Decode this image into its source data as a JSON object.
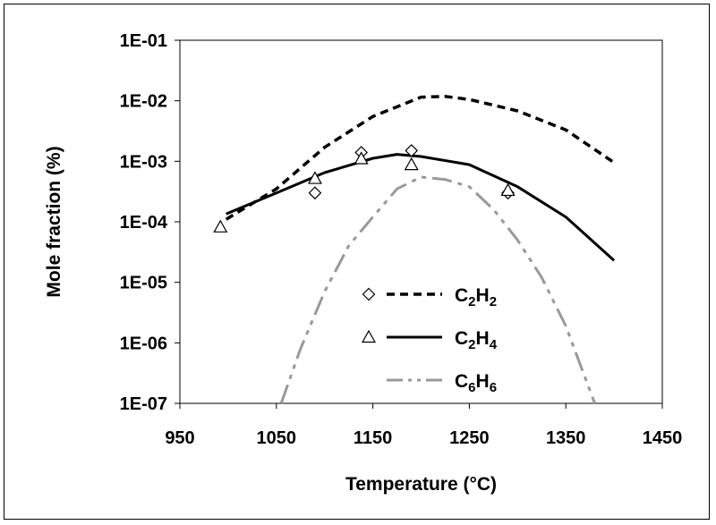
{
  "chart_data": {
    "type": "line",
    "xlabel": "Temperature (°C)",
    "ylabel": "Mole fraction (%)",
    "xlim": [
      950,
      1450
    ],
    "ylim": [
      1e-07,
      0.1
    ],
    "yscale": "log",
    "x_ticks": [
      "950",
      "1050",
      "1150",
      "1250",
      "1350",
      "1450"
    ],
    "y_ticks": [
      "1E-01",
      "1E-02",
      "1E-03",
      "1E-04",
      "1E-05",
      "1E-06",
      "1E-07"
    ],
    "grid": false,
    "legend_position": "lower-center",
    "series": [
      {
        "name": "C2H2",
        "label_main": "C",
        "label_sub1": "2",
        "label_mid": "H",
        "label_sub2": "2",
        "style": "dashed",
        "color": "#000000",
        "marker": "diamond",
        "line": [
          [
            998,
            0.00011
          ],
          [
            1050,
            0.00035
          ],
          [
            1100,
            0.0017
          ],
          [
            1150,
            0.0055
          ],
          [
            1200,
            0.0115
          ],
          [
            1225,
            0.0118
          ],
          [
            1250,
            0.0105
          ],
          [
            1300,
            0.0068
          ],
          [
            1350,
            0.0033
          ],
          [
            1400,
            0.00095
          ]
        ],
        "points": [
          [
            1090,
            0.0003
          ],
          [
            1138,
            0.0014
          ],
          [
            1190,
            0.0015
          ],
          [
            1290,
            0.0003
          ]
        ]
      },
      {
        "name": "C2H4",
        "label_main": "C",
        "label_sub1": "2",
        "label_mid": "H",
        "label_sub2": "4",
        "style": "solid",
        "color": "#000000",
        "marker": "triangle",
        "line": [
          [
            998,
            0.000135
          ],
          [
            1050,
            0.0003
          ],
          [
            1100,
            0.00065
          ],
          [
            1150,
            0.00112
          ],
          [
            1175,
            0.0013
          ],
          [
            1200,
            0.0012
          ],
          [
            1250,
            0.00088
          ],
          [
            1300,
            0.00038
          ],
          [
            1350,
            0.00012
          ],
          [
            1400,
            2.3e-05
          ]
        ],
        "points": [
          [
            992,
            8.2e-05
          ],
          [
            1090,
            0.00052
          ],
          [
            1138,
            0.0011
          ],
          [
            1190,
            0.00088
          ],
          [
            1290,
            0.00033
          ]
        ]
      },
      {
        "name": "C6H6",
        "label_main": "C",
        "label_sub1": "6",
        "label_mid": "H",
        "label_sub2": "6",
        "style": "dash-dot-dot",
        "color": "#999999",
        "marker": "none",
        "line": [
          [
            1055,
            1e-07
          ],
          [
            1075,
            8e-07
          ],
          [
            1100,
            7e-06
          ],
          [
            1125,
            4e-05
          ],
          [
            1150,
            0.00012
          ],
          [
            1175,
            0.00035
          ],
          [
            1200,
            0.00055
          ],
          [
            1225,
            0.0005
          ],
          [
            1250,
            0.00038
          ],
          [
            1275,
            0.00016
          ],
          [
            1300,
            5e-05
          ],
          [
            1325,
            1.2e-05
          ],
          [
            1350,
            1.9e-06
          ],
          [
            1380,
            1e-07
          ]
        ],
        "points": []
      }
    ]
  }
}
